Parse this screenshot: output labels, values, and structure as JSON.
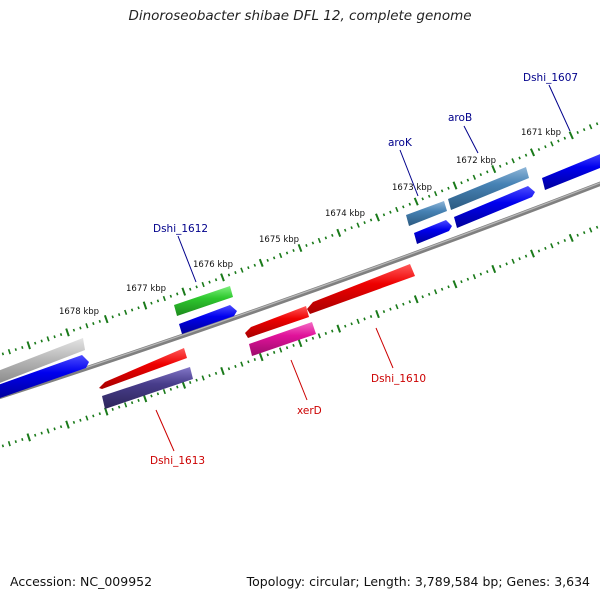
{
  "title": "Dinoroseobacter shibae DFL 12, complete genome",
  "footer": {
    "accession": "Accession: NC_009952",
    "summary": "Topology: circular; Length: 3,789,584 bp; Genes: 3,634"
  },
  "ticks": [
    "1671 kbp",
    "1672 kbp",
    "1673 kbp",
    "1674 kbp",
    "1675 kbp",
    "1676 kbp",
    "1677 kbp",
    "1678 kbp"
  ],
  "genes": [
    {
      "name": "Dshi_1607",
      "color": "#00008b"
    },
    {
      "name": "aroB",
      "color": "#00008b"
    },
    {
      "name": "aroK",
      "color": "#00008b"
    },
    {
      "name": "Dshi_1612",
      "color": "#00008b"
    },
    {
      "name": "Dshi_1610",
      "color": "#cc0000"
    },
    {
      "name": "xerD",
      "color": "#cc0000"
    },
    {
      "name": "Dshi_1613",
      "color": "#cc0000"
    }
  ],
  "colors": {
    "blue": "#0000ee",
    "steelblue": "#4682b4",
    "green": "#2ec82e",
    "red": "#ee0000",
    "magenta": "#e0129a",
    "darkslate": "#483d8b",
    "gray": "#b0b0b0",
    "backbone": "#808080",
    "tick": "#1a7a1a"
  }
}
